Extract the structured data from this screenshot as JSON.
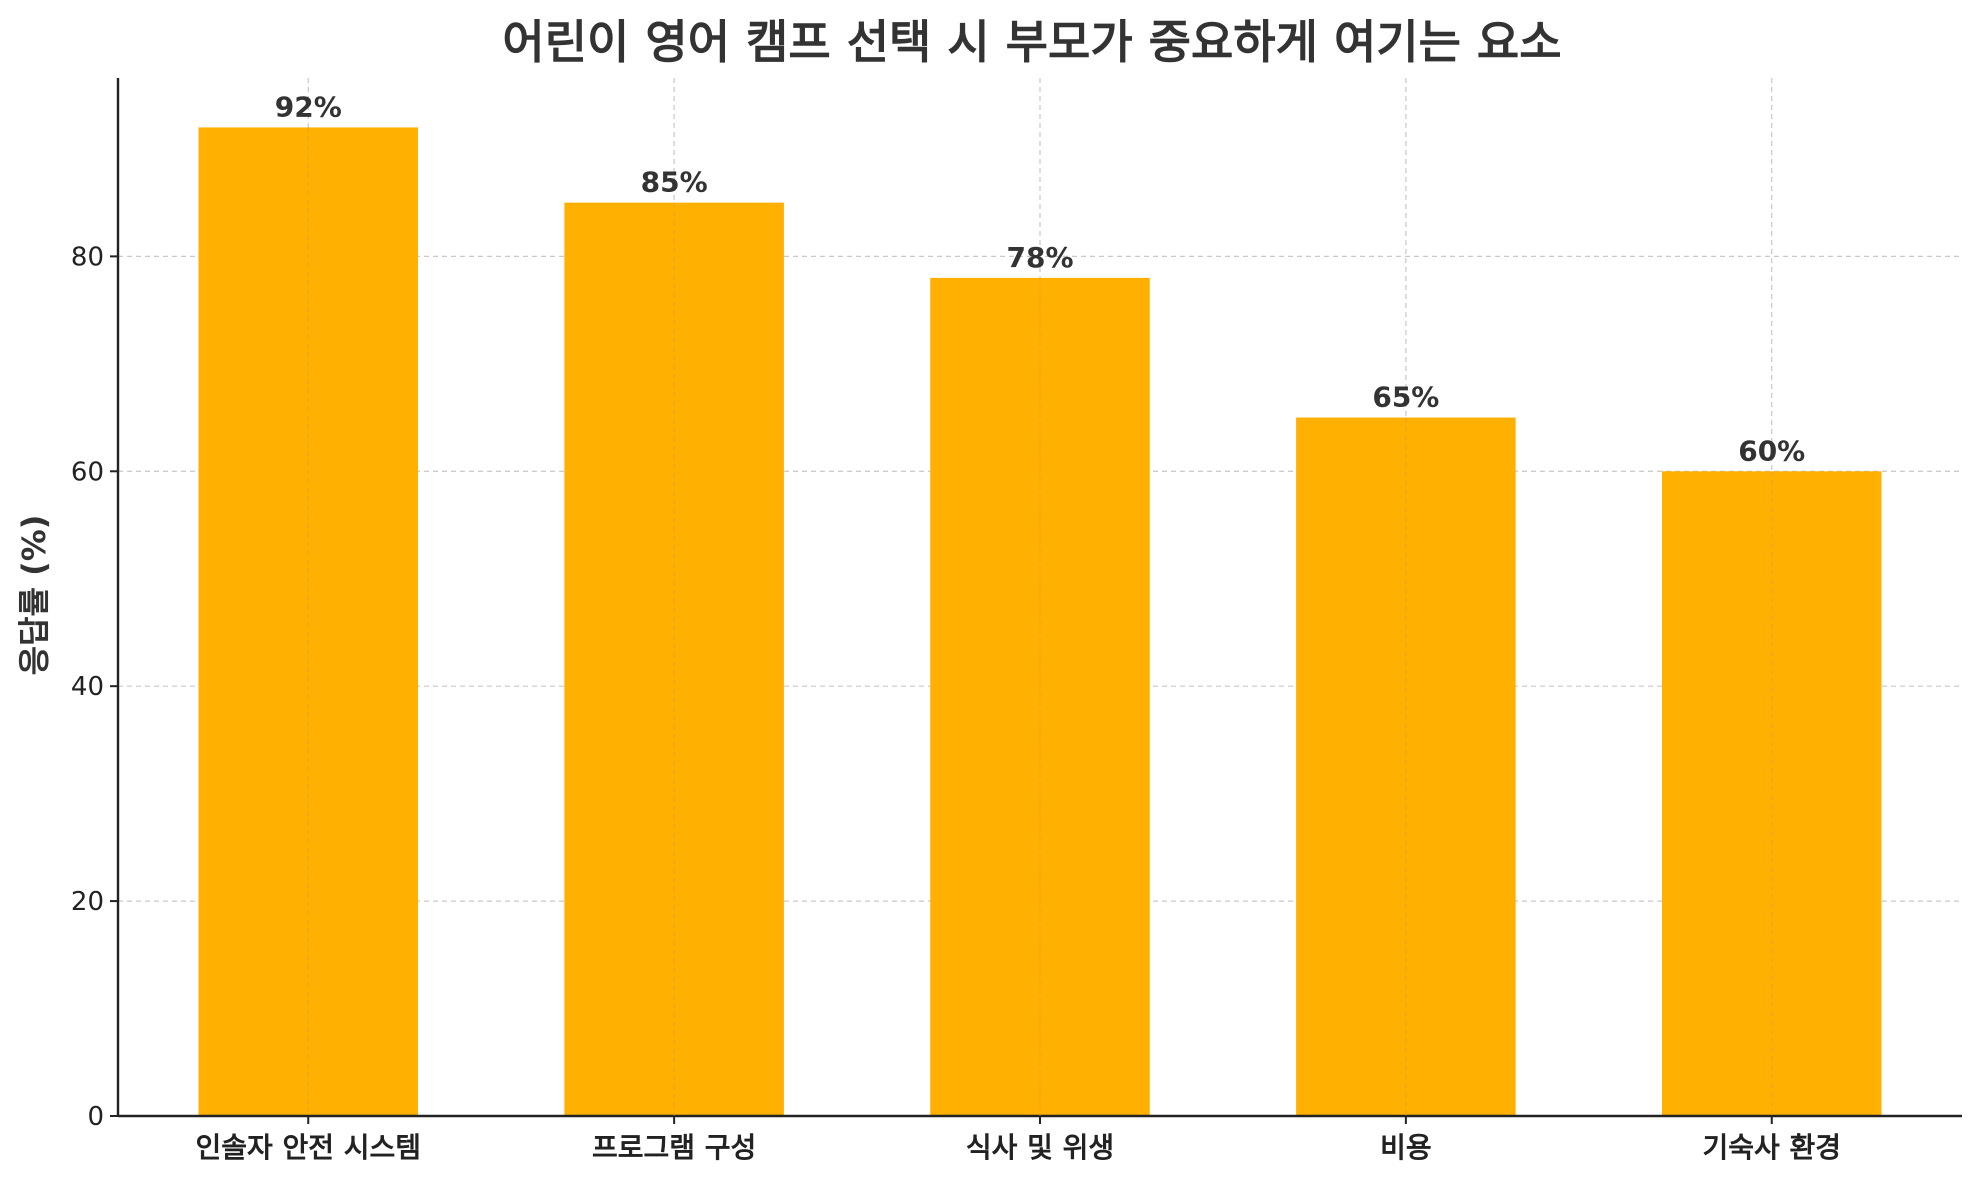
{
  "chart_data": {
    "type": "bar",
    "title": "어린이 영어 캠프 선택 시 부모가 중요하게 여기는 요소",
    "xlabel": "",
    "ylabel": "응답률 (%)",
    "categories": [
      "인솔자 안전 시스템",
      "프로그램 구성",
      "식사 및 위생",
      "비용",
      "기숙사 환경"
    ],
    "values": [
      92,
      85,
      78,
      65,
      60
    ],
    "value_labels": [
      "92%",
      "85%",
      "78%",
      "65%",
      "60%"
    ],
    "ylim": [
      0,
      96.6
    ],
    "yticks": [
      0,
      20,
      40,
      60,
      80
    ],
    "ytick_labels": [
      "0",
      "20",
      "40",
      "60",
      "80"
    ],
    "grid": true,
    "bar_color": "#FFB000",
    "grid_color": "#c8c8c8",
    "axis_color": "#222222"
  }
}
